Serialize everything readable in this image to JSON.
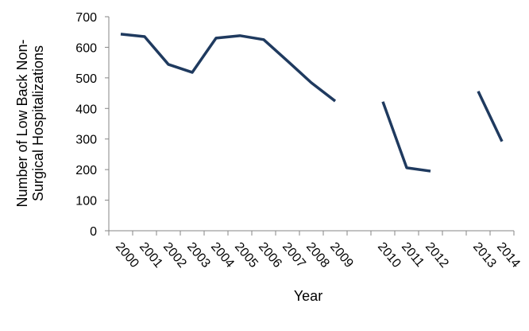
{
  "chart_data": {
    "type": "line",
    "xlabel": "Year",
    "ylabel": [
      "Number of Low Back Non-",
      "Surgical Hospitalizations"
    ],
    "categories": [
      "2000",
      "2001",
      "2002",
      "2003",
      "2004",
      "2005",
      "2006",
      "2007",
      "2008",
      "2009",
      null,
      "2010",
      "2011",
      "2012",
      null,
      "2013",
      "2014"
    ],
    "series": [
      {
        "color": "#1f3a5f",
        "values": [
          643,
          635,
          544,
          518,
          630,
          638,
          625,
          555,
          484,
          424,
          null,
          422,
          206,
          195,
          null,
          456,
          292
        ]
      }
    ],
    "ylim": [
      0,
      700
    ],
    "yticks": [
      0,
      100,
      200,
      300,
      400,
      500,
      600,
      700
    ]
  }
}
